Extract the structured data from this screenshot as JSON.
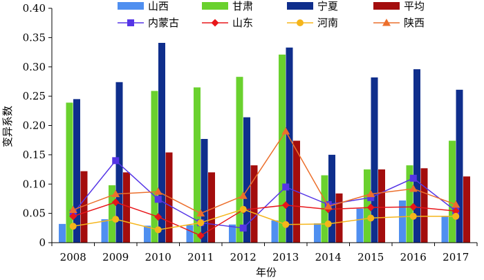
{
  "chart_data": {
    "type": "bar",
    "xlabel": "年份",
    "ylabel": "变异系数",
    "ylim": [
      0,
      0.4
    ],
    "yticks": [
      "0",
      "0.05",
      "0.10",
      "0.15",
      "0.20",
      "0.25",
      "0.30",
      "0.35",
      "0.40"
    ],
    "categories": [
      "2008",
      "2009",
      "2010",
      "2011",
      "2012",
      "2013",
      "2014",
      "2015",
      "2016",
      "2017"
    ],
    "bar_series": [
      {
        "name": "山西",
        "color": "#4f8ff0",
        "values": [
          0.032,
          0.04,
          0.029,
          0.03,
          0.031,
          0.038,
          0.033,
          0.058,
          0.072,
          0.045
        ]
      },
      {
        "name": "甘肃",
        "color": "#6ad12e",
        "values": [
          0.239,
          0.098,
          0.259,
          0.265,
          0.283,
          0.321,
          0.115,
          0.125,
          0.132,
          0.174
        ]
      },
      {
        "name": "宁夏",
        "color": "#0f2e8c",
        "values": [
          0.245,
          0.274,
          0.341,
          0.177,
          0.214,
          0.333,
          0.15,
          0.282,
          0.296,
          0.261
        ]
      },
      {
        "name": "平均",
        "color": "#a30d0d",
        "values": [
          0.122,
          0.12,
          0.154,
          0.12,
          0.132,
          0.174,
          0.084,
          0.125,
          0.127,
          0.113
        ]
      }
    ],
    "line_series": [
      {
        "name": "内蒙古",
        "color": "#5535e6",
        "marker": "square",
        "values": [
          0.05,
          0.14,
          0.074,
          0.034,
          0.025,
          0.095,
          0.065,
          0.077,
          0.11,
          0.054
        ]
      },
      {
        "name": "山东",
        "color": "#e8161a",
        "marker": "diamond",
        "values": [
          0.045,
          0.069,
          0.044,
          0.012,
          0.056,
          0.064,
          0.057,
          0.06,
          0.061,
          0.054
        ]
      },
      {
        "name": "河南",
        "color": "#f5b51a",
        "marker": "circle",
        "values": [
          0.028,
          0.04,
          0.022,
          0.034,
          0.057,
          0.031,
          0.032,
          0.042,
          0.045,
          0.045
        ]
      },
      {
        "name": "陕西",
        "color": "#ec6f2c",
        "marker": "triangle",
        "values": [
          0.056,
          0.083,
          0.087,
          0.05,
          0.08,
          0.19,
          0.062,
          0.083,
          0.092,
          0.065
        ]
      }
    ],
    "legend_position": "top",
    "grid": false
  }
}
